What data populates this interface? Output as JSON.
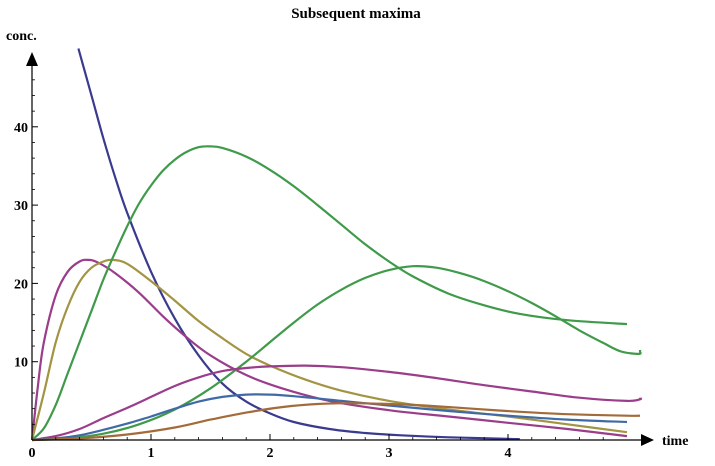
{
  "chart_data": {
    "type": "line",
    "title": "Subsequent maxima",
    "xlabel": "time",
    "ylabel": "conc.",
    "xlim": [
      0,
      5
    ],
    "ylim": [
      0,
      50
    ],
    "x_ticks": [
      0,
      1,
      2,
      3,
      4
    ],
    "y_ticks": [
      10,
      20,
      30,
      40
    ],
    "grid": false,
    "series": [
      {
        "color": "#3a3a8f",
        "points": [
          [
            0.39,
            50
          ],
          [
            0.5,
            44
          ],
          [
            0.6,
            38.5
          ],
          [
            0.7,
            33.5
          ],
          [
            0.8,
            29
          ],
          [
            1.0,
            21.5
          ],
          [
            1.2,
            15.5
          ],
          [
            1.4,
            10.8
          ],
          [
            1.6,
            7.2
          ],
          [
            1.8,
            4.9
          ],
          [
            2.0,
            3.4
          ],
          [
            2.2,
            2.3
          ],
          [
            2.5,
            1.4
          ],
          [
            2.8,
            0.9
          ],
          [
            3.1,
            0.6
          ],
          [
            3.5,
            0.35
          ],
          [
            4.0,
            0.15
          ],
          [
            4.1,
            0.1
          ]
        ]
      },
      {
        "color": "#9a3d8a",
        "points": [
          [
            0,
            0
          ],
          [
            0.05,
            7
          ],
          [
            0.1,
            12.5
          ],
          [
            0.2,
            18.5
          ],
          [
            0.3,
            21.5
          ],
          [
            0.4,
            22.8
          ],
          [
            0.47,
            23
          ],
          [
            0.55,
            22.7
          ],
          [
            0.7,
            21.3
          ],
          [
            0.9,
            18.8
          ],
          [
            1.1,
            15.8
          ],
          [
            1.3,
            13.1
          ],
          [
            1.5,
            10.8
          ],
          [
            1.8,
            8.3
          ],
          [
            2.1,
            6.6
          ],
          [
            2.5,
            5
          ],
          [
            3.0,
            3.8
          ],
          [
            3.5,
            3
          ],
          [
            4.0,
            2.2
          ],
          [
            4.5,
            1.4
          ],
          [
            5.0,
            0.5
          ]
        ]
      },
      {
        "color": "#a39444",
        "points": [
          [
            0,
            0
          ],
          [
            0.1,
            6
          ],
          [
            0.2,
            12.5
          ],
          [
            0.3,
            17
          ],
          [
            0.4,
            20.2
          ],
          [
            0.5,
            22
          ],
          [
            0.6,
            22.8
          ],
          [
            0.68,
            23
          ],
          [
            0.8,
            22.5
          ],
          [
            1.0,
            20.3
          ],
          [
            1.2,
            17.8
          ],
          [
            1.4,
            15.2
          ],
          [
            1.6,
            13
          ],
          [
            1.8,
            11
          ],
          [
            2.0,
            9.5
          ],
          [
            2.3,
            7.7
          ],
          [
            2.6,
            6.3
          ],
          [
            3.0,
            5
          ],
          [
            3.5,
            3.9
          ],
          [
            4.0,
            3
          ],
          [
            4.5,
            2
          ],
          [
            5.0,
            1
          ]
        ]
      },
      {
        "color": "#3f9a4a",
        "points": [
          [
            0,
            0
          ],
          [
            0.1,
            1.5
          ],
          [
            0.2,
            4.5
          ],
          [
            0.3,
            8.5
          ],
          [
            0.4,
            12.5
          ],
          [
            0.5,
            16.5
          ],
          [
            0.6,
            20.5
          ],
          [
            0.7,
            24
          ],
          [
            0.8,
            27.3
          ],
          [
            0.9,
            30.2
          ],
          [
            1.0,
            32.5
          ],
          [
            1.1,
            34.4
          ],
          [
            1.2,
            35.8
          ],
          [
            1.3,
            36.8
          ],
          [
            1.4,
            37.4
          ],
          [
            1.5,
            37.5
          ],
          [
            1.6,
            37.3
          ],
          [
            1.8,
            36.2
          ],
          [
            2.0,
            34.5
          ],
          [
            2.2,
            32.4
          ],
          [
            2.4,
            30
          ],
          [
            2.6,
            27.5
          ],
          [
            2.8,
            25
          ],
          [
            3.0,
            22.8
          ],
          [
            3.2,
            20.9
          ],
          [
            3.5,
            18.7
          ],
          [
            3.8,
            17.2
          ],
          [
            4.1,
            16.1
          ],
          [
            4.5,
            15.3
          ],
          [
            5.0,
            14.8
          ]
        ]
      },
      {
        "color": "#3f9a4a",
        "points": [
          [
            0,
            0
          ],
          [
            0.3,
            0.2
          ],
          [
            0.6,
            0.8
          ],
          [
            0.9,
            2
          ],
          [
            1.2,
            3.9
          ],
          [
            1.5,
            6.6
          ],
          [
            1.8,
            10
          ],
          [
            2.0,
            12.5
          ],
          [
            2.2,
            15
          ],
          [
            2.4,
            17.3
          ],
          [
            2.6,
            19.2
          ],
          [
            2.8,
            20.7
          ],
          [
            3.0,
            21.7
          ],
          [
            3.2,
            22.2
          ],
          [
            3.4,
            22
          ],
          [
            3.6,
            21.3
          ],
          [
            3.8,
            20.3
          ],
          [
            4.0,
            19
          ],
          [
            4.2,
            17.5
          ],
          [
            4.4,
            15.8
          ],
          [
            4.6,
            14
          ],
          [
            4.8,
            12.4
          ],
          [
            4.95,
            11.3
          ],
          [
            5.1,
            11
          ],
          [
            5.25,
            11.3
          ],
          [
            5.4,
            11.5
          ]
        ]
      },
      {
        "color": "#9a3d8a",
        "points": [
          [
            0,
            0
          ],
          [
            0.2,
            0.5
          ],
          [
            0.4,
            1.4
          ],
          [
            0.6,
            2.8
          ],
          [
            0.8,
            4.1
          ],
          [
            1.0,
            5.5
          ],
          [
            1.2,
            6.9
          ],
          [
            1.4,
            8
          ],
          [
            1.6,
            8.8
          ],
          [
            1.8,
            9.2
          ],
          [
            2.0,
            9.4
          ],
          [
            2.3,
            9.5
          ],
          [
            2.6,
            9.3
          ],
          [
            3.0,
            8.7
          ],
          [
            3.4,
            7.9
          ],
          [
            3.8,
            7
          ],
          [
            4.2,
            6.2
          ],
          [
            4.6,
            5.4
          ],
          [
            5.0,
            5
          ],
          [
            5.2,
            5.2
          ],
          [
            5.4,
            5.4
          ]
        ]
      },
      {
        "color": "#3f6aa5",
        "points": [
          [
            0,
            0
          ],
          [
            0.2,
            0.2
          ],
          [
            0.4,
            0.6
          ],
          [
            0.6,
            1.3
          ],
          [
            0.8,
            2.1
          ],
          [
            1.0,
            3
          ],
          [
            1.2,
            4
          ],
          [
            1.4,
            4.9
          ],
          [
            1.6,
            5.5
          ],
          [
            1.8,
            5.8
          ],
          [
            2.0,
            5.8
          ],
          [
            2.2,
            5.6
          ],
          [
            2.6,
            5
          ],
          [
            3.0,
            4.4
          ],
          [
            3.5,
            3.7
          ],
          [
            4.0,
            3.1
          ],
          [
            4.5,
            2.6
          ],
          [
            5.0,
            2.3
          ]
        ]
      },
      {
        "color": "#a36a3a",
        "points": [
          [
            0,
            0
          ],
          [
            0.4,
            0.2
          ],
          [
            0.8,
            0.7
          ],
          [
            1.2,
            1.6
          ],
          [
            1.5,
            2.6
          ],
          [
            1.8,
            3.5
          ],
          [
            2.1,
            4.2
          ],
          [
            2.4,
            4.6
          ],
          [
            2.7,
            4.7
          ],
          [
            3.0,
            4.6
          ],
          [
            3.3,
            4.4
          ],
          [
            3.7,
            4
          ],
          [
            4.1,
            3.6
          ],
          [
            4.5,
            3.3
          ],
          [
            5.0,
            3.1
          ],
          [
            5.4,
            3.1
          ]
        ]
      }
    ]
  }
}
